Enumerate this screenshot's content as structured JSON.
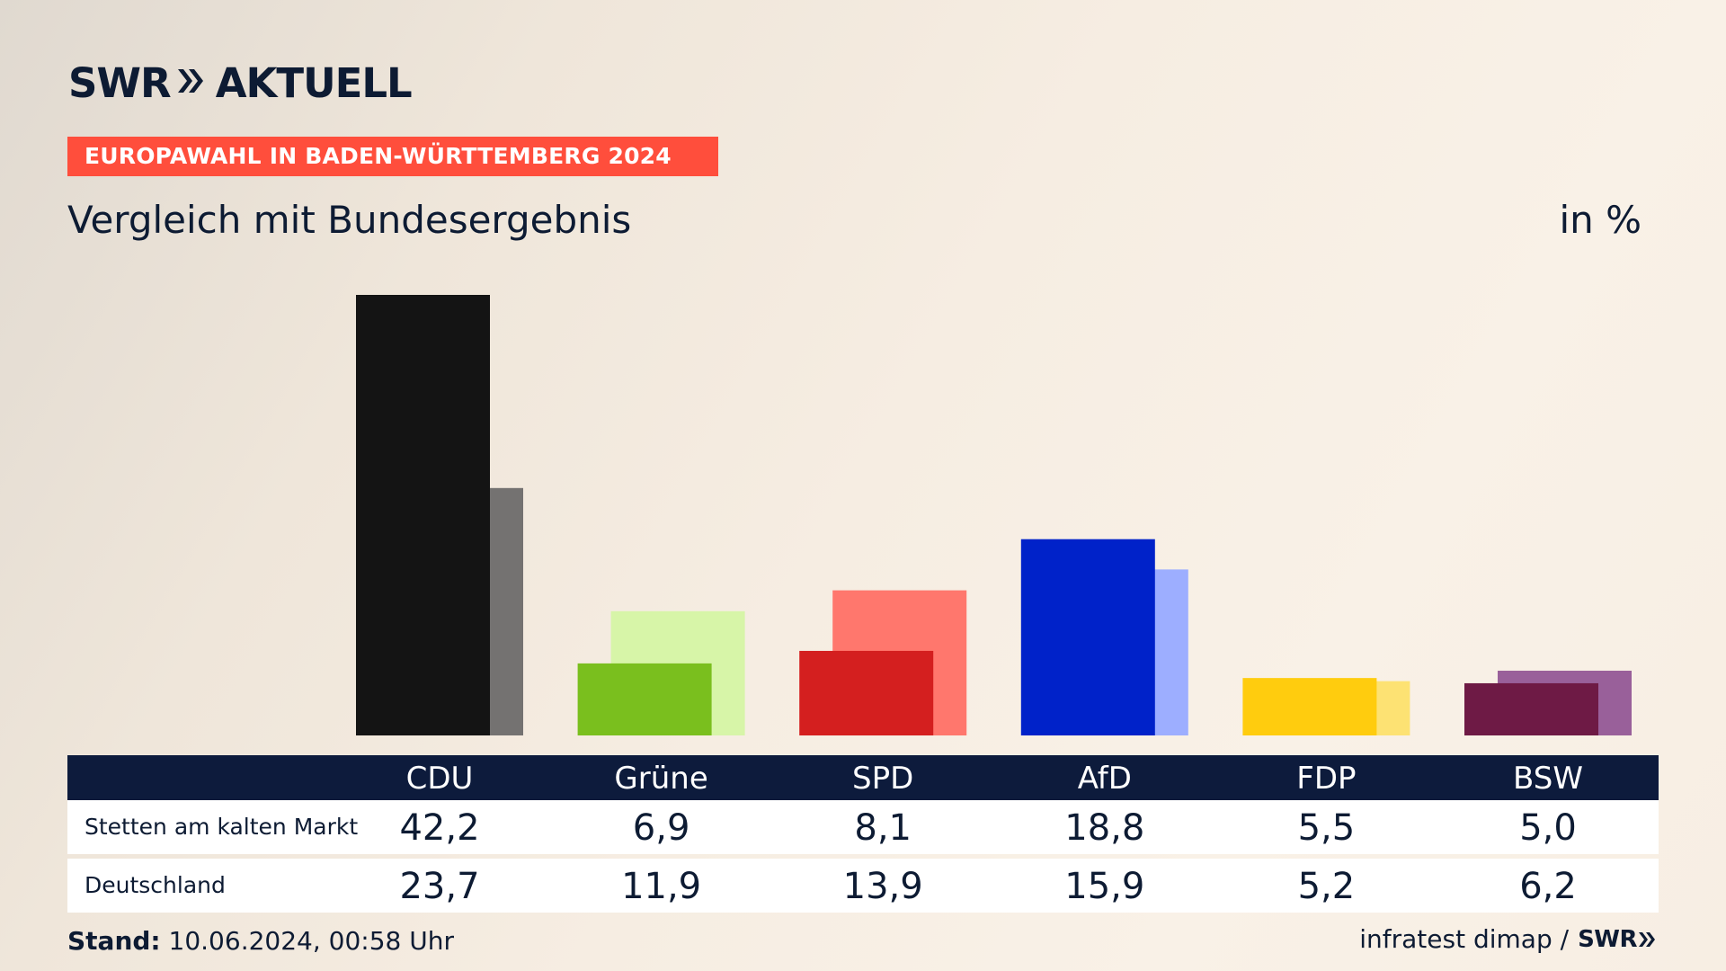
{
  "brand": {
    "swr": "SWR",
    "aktuell": "AKTUELL"
  },
  "banner": "EUROPAWAHL IN BADEN-WÜRTTEMBERG 2024",
  "subtitle": "Vergleich mit Bundesergebnis",
  "unit": "in %",
  "chart_data": {
    "type": "bar",
    "title": "Vergleich mit Bundesergebnis",
    "ylabel": "in %",
    "ylim": [
      0,
      42.2
    ],
    "categories": [
      "CDU",
      "Grüne",
      "SPD",
      "AfD",
      "FDP",
      "BSW"
    ],
    "series": [
      {
        "name": "Stetten am kalten Markt",
        "values": [
          42.2,
          6.9,
          8.1,
          18.8,
          5.5,
          5.0
        ],
        "display": [
          "42,2",
          "6,9",
          "8,1",
          "18,8",
          "5,5",
          "5,0"
        ]
      },
      {
        "name": "Deutschland",
        "values": [
          23.7,
          11.9,
          13.9,
          15.9,
          5.2,
          6.2
        ],
        "display": [
          "23,7",
          "11,9",
          "13,9",
          "15,9",
          "5,2",
          "6,2"
        ]
      }
    ],
    "colors": {
      "primary": [
        "#141414",
        "#7abf1e",
        "#d41f1f",
        "#0022c9",
        "#ffcc0e",
        "#6e1a45"
      ],
      "secondary": [
        "#747271",
        "#d7f5a8",
        "#ff776d",
        "#9daeff",
        "#fde273",
        "#99609a"
      ]
    }
  },
  "footer": {
    "stand_label": "Stand:",
    "stand_value": "10.06.2024, 00:58 Uhr",
    "source": "infratest dimap /",
    "source_brand": "SWR"
  }
}
